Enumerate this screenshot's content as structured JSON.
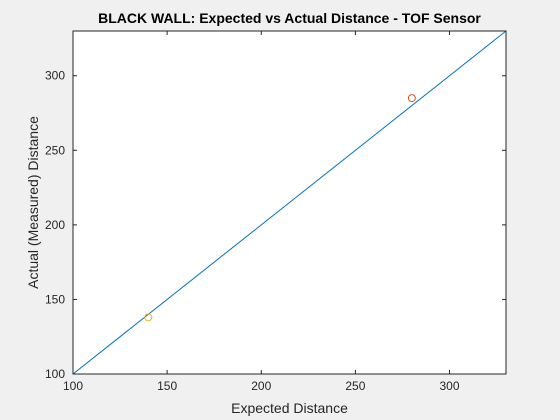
{
  "chart_data": {
    "type": "line",
    "title": "BLACK WALL: Expected vs Actual Distance - TOF Sensor",
    "xlabel": "Expected Distance",
    "ylabel": "Actual (Measured) Distance",
    "xlim": [
      100,
      330
    ],
    "ylim": [
      100,
      330
    ],
    "xticks": [
      100,
      150,
      200,
      250,
      300
    ],
    "yticks": [
      100,
      150,
      200,
      250,
      300
    ],
    "grid": false,
    "series": [
      {
        "kind": "line",
        "color": "#0072bd",
        "x": [
          100,
          330
        ],
        "y": [
          100,
          330
        ]
      },
      {
        "kind": "marker",
        "color": "#d95319",
        "x": [
          280
        ],
        "y": [
          285
        ]
      },
      {
        "kind": "marker",
        "color": "#edb120",
        "x": [
          140
        ],
        "y": [
          138
        ]
      }
    ]
  },
  "colors": {
    "figure_bg": "#f0f0f0",
    "axes_bg": "#ffffff",
    "axis_line": "#262626"
  }
}
